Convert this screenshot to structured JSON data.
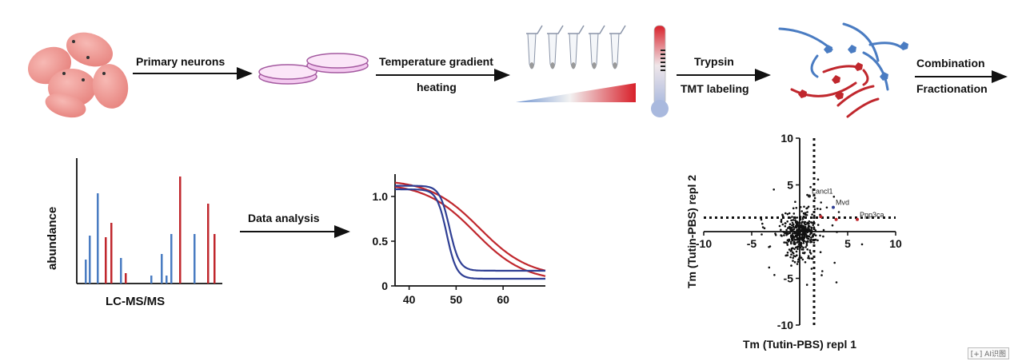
{
  "workflow": {
    "step_primary_neurons": "Primary neurons",
    "step_temp_line1": "Temperature gradient",
    "step_temp_line2": "heating",
    "step_trypsin": "Trypsin",
    "step_tmt": "TMT labeling",
    "step_combination": "Combination",
    "step_fractionation": "Fractionation",
    "data_analysis": "Data analysis"
  },
  "spectrum": {
    "ylabel": "abundance",
    "xlabel": "LC-MS/MS",
    "colors": {
      "blue": "#4a7cc2",
      "red": "#c0272d"
    }
  },
  "chart_data": [
    {
      "type": "line",
      "title": "",
      "xlabel": "",
      "ylabel": "",
      "xlim": [
        37,
        69
      ],
      "ylim": [
        0,
        1.25
      ],
      "xticks": [
        "40",
        "50",
        "60"
      ],
      "yticks": [
        "0",
        "0.5",
        "1.0"
      ],
      "series": [
        {
          "color": "#c0272d",
          "tm": 55.0,
          "k": 0.19,
          "top": 1.19,
          "bottom": 0.1
        },
        {
          "color": "#c0272d",
          "tm": 54.0,
          "k": 0.19,
          "top": 1.15,
          "bottom": 0.05
        },
        {
          "color": "#2f3f94",
          "tm": 48.6,
          "k": 0.95,
          "top": 1.12,
          "bottom": 0.17
        },
        {
          "color": "#2f3f94",
          "tm": 48.0,
          "k": 0.95,
          "top": 1.08,
          "bottom": 0.08
        }
      ]
    },
    {
      "type": "scatter",
      "title": "",
      "xlabel": "Tm (Tutin-PBS) repl 1",
      "ylabel": "Tm (Tutin-PBS) repl 2",
      "xlim": [
        -10,
        10
      ],
      "ylim": [
        -10,
        10
      ],
      "xticks": [
        "-10",
        "-5",
        "5",
        "10"
      ],
      "yticks": [
        "10",
        "5",
        "-5",
        "-10"
      ],
      "threshold_lines": {
        "x": 1.5,
        "y": 1.5
      },
      "labeled_points": [
        {
          "label": "Lancl1",
          "x": 1.0,
          "y": 3.8,
          "color": "#222222"
        },
        {
          "label": "Mvd",
          "x": 3.5,
          "y": 2.6,
          "color": "#2f3f94"
        },
        {
          "label": "Ppp3ca",
          "x": 6.0,
          "y": 1.3,
          "color": "#c0272d"
        },
        {
          "label": "",
          "x": 3.8,
          "y": 1.3,
          "color": "#c0272d"
        },
        {
          "label": "",
          "x": 2.2,
          "y": 1.6,
          "color": "#c0272d"
        }
      ]
    }
  ],
  "corner_tag": "[+] AI识图"
}
